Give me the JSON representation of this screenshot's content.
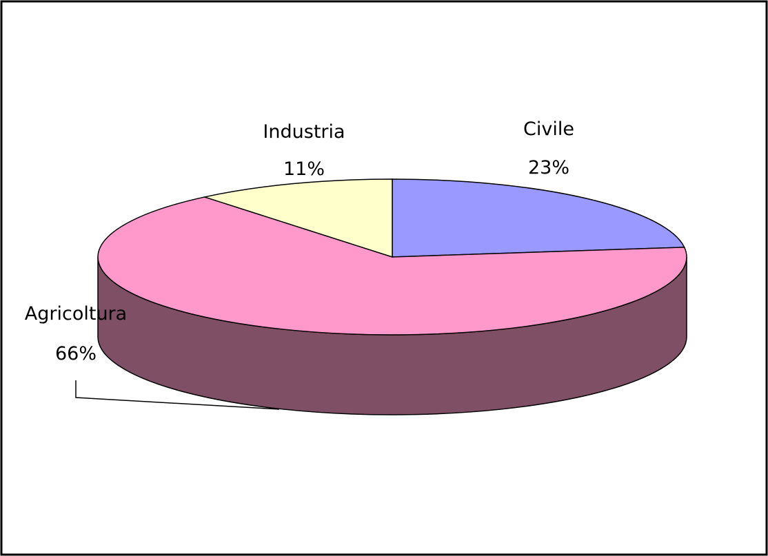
{
  "chart_data": {
    "type": "pie",
    "style": "3d",
    "categories": [
      "Civile",
      "Agricoltura",
      "Industria"
    ],
    "values": [
      23,
      66,
      11
    ],
    "percent_labels": [
      "23%",
      "66%",
      "11%"
    ],
    "colors": {
      "Civile": "#9999ff",
      "Agricoltura": "#ff99cc",
      "Industria": "#ffffcc",
      "side": "#7f4f66"
    },
    "title": "",
    "legend": "none",
    "frame_border": true
  }
}
